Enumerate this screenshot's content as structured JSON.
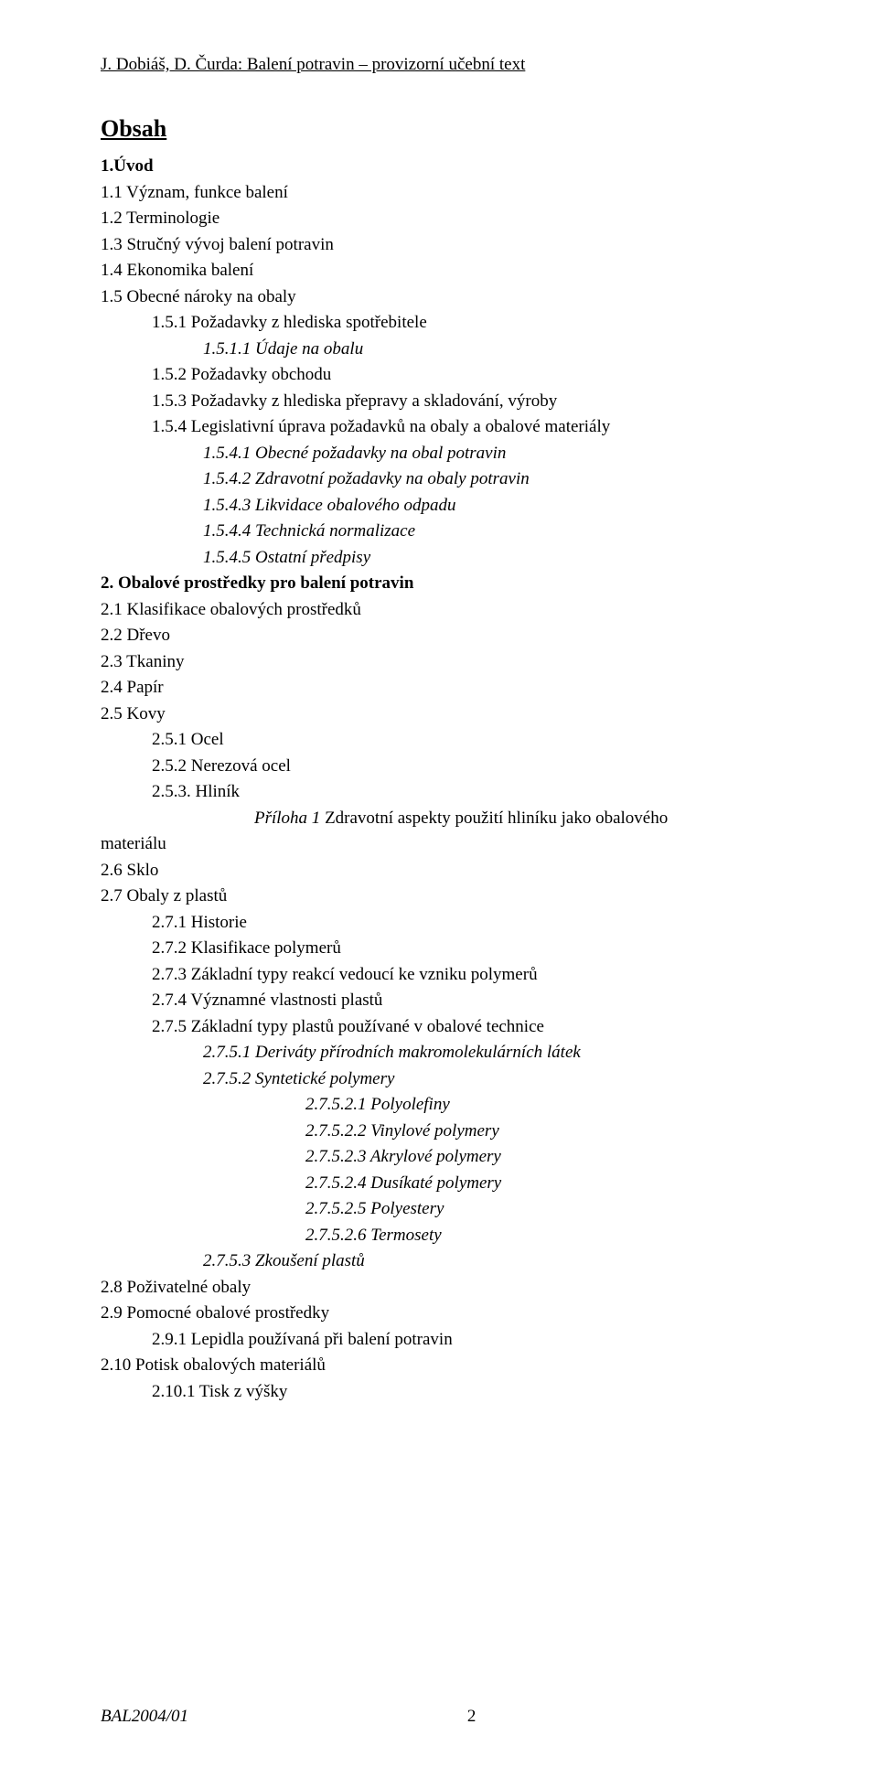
{
  "header": {
    "text": "J. Dobiáš, D. Čurda: Balení potravin – provizorní učební text"
  },
  "title": "Obsah",
  "toc": [
    {
      "text": "1.Úvod",
      "indent": 1,
      "bold": true
    },
    {
      "text": "1.1 Význam, funkce balení",
      "indent": 1
    },
    {
      "text": "1.2 Terminologie",
      "indent": 1
    },
    {
      "text": "1.3 Stručný vývoj balení potravin",
      "indent": 1
    },
    {
      "text": "1.4 Ekonomika balení",
      "indent": 1
    },
    {
      "text": "1.5 Obecné nároky na obaly",
      "indent": 1
    },
    {
      "text": "1.5.1 Požadavky z hlediska spotřebitele",
      "indent": 2
    },
    {
      "text": "1.5.1.1 Údaje na obalu",
      "indent": 3,
      "italic": true
    },
    {
      "text": "1.5.2 Požadavky obchodu",
      "indent": 2
    },
    {
      "text": "1.5.3 Požadavky z hlediska přepravy a skladování, výroby",
      "indent": 2
    },
    {
      "text": "1.5.4 Legislativní úprava požadavků na obaly a obalové materiály",
      "indent": 2
    },
    {
      "text": "1.5.4.1 Obecné požadavky na obal potravin",
      "indent": 3,
      "italic": true
    },
    {
      "text": "1.5.4.2 Zdravotní požadavky na obaly potravin",
      "indent": 3,
      "italic": true
    },
    {
      "text": "1.5.4.3 Likvidace obalového odpadu",
      "indent": 3,
      "italic": true
    },
    {
      "text": "1.5.4.4 Technická normalizace",
      "indent": 3,
      "italic": true
    },
    {
      "text": "1.5.4.5 Ostatní předpisy",
      "indent": 3,
      "italic": true
    },
    {
      "text": "2. Obalové prostředky pro balení potravin",
      "indent": 0,
      "bold": true
    },
    {
      "text": "2.1 Klasifikace obalových prostředků",
      "indent": 1
    },
    {
      "text": "2.2 Dřevo",
      "indent": 1
    },
    {
      "text": "2.3 Tkaniny",
      "indent": 1
    },
    {
      "text": "2.4 Papír",
      "indent": 1
    },
    {
      "text": "2.5 Kovy",
      "indent": 1
    },
    {
      "text": "2.5.1 Ocel",
      "indent": 2
    },
    {
      "text": "2.5.2 Nerezová ocel",
      "indent": 2
    },
    {
      "text": "2.5.3. Hliník",
      "indent": 2
    },
    {
      "text": "Příloha 1 Zdravotní aspekty použití hliníku jako obalového",
      "indent": 4,
      "italic_prefix": "Příloha 1"
    },
    {
      "text": "materiálu",
      "indent": 0
    },
    {
      "text": "2.6 Sklo",
      "indent": 1
    },
    {
      "text": "2.7 Obaly z plastů",
      "indent": 1
    },
    {
      "text": "2.7.1 Historie",
      "indent": 2
    },
    {
      "text": "2.7.2 Klasifikace polymerů",
      "indent": 2
    },
    {
      "text": "2.7.3 Základní typy reakcí vedoucí ke vzniku polymerů",
      "indent": 2
    },
    {
      "text": "2.7.4 Významné vlastnosti plastů",
      "indent": 2
    },
    {
      "text": "2.7.5 Základní typy plastů používané v obalové technice",
      "indent": 2
    },
    {
      "text": "2.7.5.1 Deriváty přírodních makromolekulárních látek",
      "indent": 3,
      "italic": true
    },
    {
      "text": "2.7.5.2 Syntetické polymery",
      "indent": 3,
      "italic": true
    },
    {
      "text": "2.7.5.2.1 Polyolefiny",
      "indent": 5,
      "italic": true
    },
    {
      "text": "2.7.5.2.2 Vinylové polymery",
      "indent": 5,
      "italic": true
    },
    {
      "text": "2.7.5.2.3 Akrylové polymery",
      "indent": 5,
      "italic": true
    },
    {
      "text": "2.7.5.2.4 Dusíkaté polymery",
      "indent": 5,
      "italic": true
    },
    {
      "text": "2.7.5.2.5 Polyestery",
      "indent": 5,
      "italic": true
    },
    {
      "text": "2.7.5.2.6 Termosety",
      "indent": 5,
      "italic": true
    },
    {
      "text": "2.7.5.3 Zkoušení plastů",
      "indent": 3,
      "italic": true
    },
    {
      "text": "2.8 Poživatelné obaly",
      "indent": 1
    },
    {
      "text": "2.9 Pomocné obalové prostředky",
      "indent": 1
    },
    {
      "text": "2.9.1 Lepidla používaná při balení potravin",
      "indent": 2
    },
    {
      "text": "2.10 Potisk obalových materiálů",
      "indent": 1
    },
    {
      "text": "2.10.1 Tisk z výšky",
      "indent": 2
    }
  ],
  "footer": {
    "code": "BAL2004/01",
    "page": "2"
  }
}
